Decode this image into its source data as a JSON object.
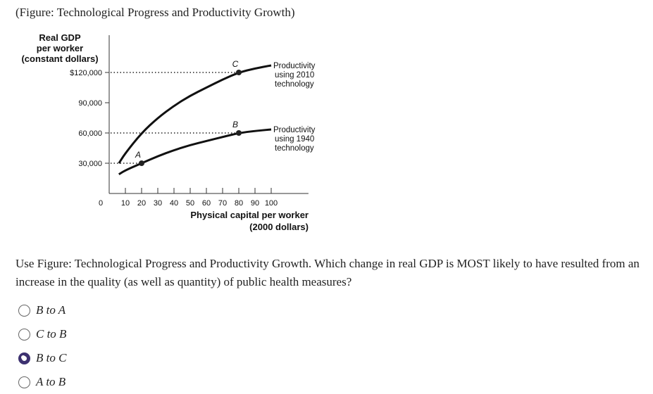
{
  "title": "(Figure: Technological Progress and Productivity Growth)",
  "question": "Use Figure: Technological Progress and Productivity Growth. Which change in real GDP is MOST likely to have resulted from an increase in the quality (as well as quantity) of public health measures?",
  "options": [
    {
      "label": "B to A",
      "selected": false
    },
    {
      "label": "C to B",
      "selected": false
    },
    {
      "label": "B to C",
      "selected": true
    },
    {
      "label": "A to B",
      "selected": false
    }
  ],
  "chart_data": {
    "type": "line",
    "ylabel": [
      "Real GDP",
      "per worker",
      "(constant dollars)"
    ],
    "xlabel": [
      "Physical capital per worker",
      "(2000 dollars)"
    ],
    "xlim": [
      0,
      120
    ],
    "ylim": [
      0,
      140000
    ],
    "x_ticks": [
      10,
      20,
      30,
      40,
      50,
      60,
      70,
      80,
      90,
      100
    ],
    "x_tick_labels": [
      "10",
      "20",
      "30",
      "40",
      "50",
      "60",
      "70",
      "80",
      "90",
      "100"
    ],
    "x_origin_label": "0",
    "y_ticks": [
      30000,
      60000,
      90000,
      120000
    ],
    "y_tick_labels": [
      "30,000",
      "60,000",
      "90,000",
      "$120,000"
    ],
    "series": [
      {
        "name": "Productivity using 2010 technology",
        "label_lines": [
          "Productivity",
          "using 2010",
          "technology"
        ],
        "x": [
          6,
          10,
          20,
          30,
          40,
          50,
          60,
          70,
          80,
          90,
          100
        ],
        "y": [
          30000,
          40000,
          60000,
          75000,
          87000,
          97000,
          105000,
          113000,
          120000,
          124000,
          127000
        ]
      },
      {
        "name": "Productivity using 1940 technology",
        "label_lines": [
          "Productivity",
          "using 1940",
          "technology"
        ],
        "x": [
          6,
          10,
          20,
          30,
          40,
          50,
          60,
          70,
          80,
          90,
          100
        ],
        "y": [
          19000,
          23000,
          30000,
          37000,
          43000,
          48000,
          52000,
          56000,
          60000,
          62000,
          63500
        ]
      }
    ],
    "points": [
      {
        "label": "A",
        "x": 20,
        "y": 30000
      },
      {
        "label": "B",
        "x": 80,
        "y": 60000
      },
      {
        "label": "C",
        "x": 80,
        "y": 120000
      }
    ],
    "dotted_guides": [
      {
        "y": 120000,
        "to_x": 80
      },
      {
        "y": 60000,
        "to_x": 80
      },
      {
        "y": 30000,
        "to_x": 20
      }
    ],
    "grid": false
  }
}
